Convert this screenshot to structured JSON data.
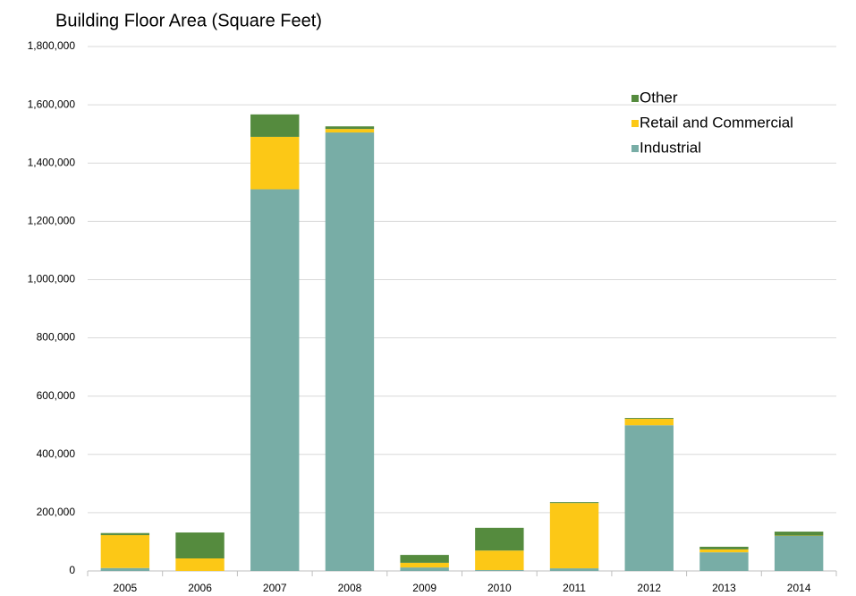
{
  "chart_data": {
    "type": "stacked_bar",
    "title": "Building Floor Area (Square Feet)",
    "categories": [
      "2005",
      "2006",
      "2007",
      "2008",
      "2009",
      "2010",
      "2011",
      "2012",
      "2013",
      "2014"
    ],
    "series": [
      {
        "name": "Industrial",
        "color": "#78ada6",
        "values": [
          10000,
          0,
          1310000,
          1505000,
          12000,
          3000,
          9000,
          500000,
          64000,
          120000
        ]
      },
      {
        "name": "Retail and Commercial",
        "color": "#fcc816",
        "values": [
          113000,
          43000,
          180000,
          12000,
          16000,
          67000,
          224000,
          22000,
          10000,
          1000
        ]
      },
      {
        "name": "Other",
        "color": "#558b3e",
        "values": [
          7000,
          89000,
          77000,
          9000,
          27000,
          78000,
          3000,
          3000,
          9000,
          14000
        ]
      }
    ],
    "ylim": [
      0,
      1800000
    ],
    "yticks": [
      0,
      {
        "value": 200000,
        "label": "200,000"
      },
      {
        "value": 400000,
        "label": "400,000"
      },
      {
        "value": 600000,
        "label": "600,000"
      },
      {
        "value": 800000,
        "label": "800,000"
      },
      {
        "value": 1000000,
        "label": "1,000,000"
      },
      {
        "value": 1200000,
        "label": "1,200,000"
      },
      {
        "value": 1400000,
        "label": "1,400,000"
      },
      {
        "value": 1600000,
        "label": "1,600,000"
      },
      {
        "value": 1800000,
        "label": "1,800,000"
      }
    ],
    "grid": true,
    "legend": "top-right"
  }
}
